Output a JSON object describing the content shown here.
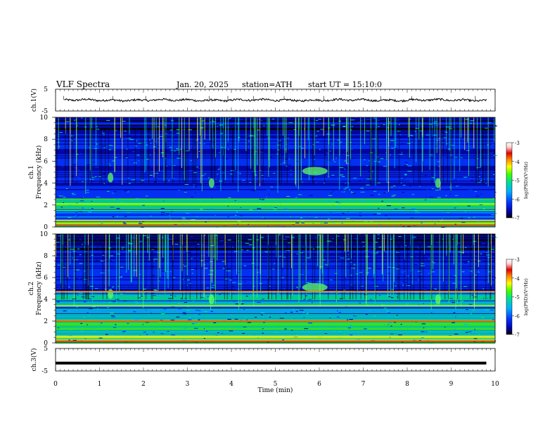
{
  "header": {
    "title": "VLF  Spectra",
    "date": "Jan. 20, 2025",
    "station": "station=ATH",
    "start": "start  UT  =   15:10:0"
  },
  "chart_data": [
    {
      "type": "line",
      "panel": "ch1-waveform",
      "ylabel": "ch.1(V)",
      "ylim": [
        -5,
        5
      ],
      "yticks": [
        "5",
        "-5"
      ],
      "xlim": [
        0,
        10
      ],
      "series": [
        {
          "values_description_level": 0,
          "trace_color": "#000000"
        }
      ]
    },
    {
      "type": "heatmap",
      "panel": "ch1-spectrogram",
      "ylabel": "ch.1\nFrequency  (kHz)",
      "ylim": [
        0,
        10
      ],
      "yticks": [
        "0",
        "2",
        "4",
        "6",
        "8",
        "10"
      ],
      "xlim": [
        0,
        10.0
      ],
      "colorbar": {
        "label": "log(PSD)(V²/Hz)",
        "range": [
          -7,
          -3
        ],
        "ticks": [
          "-3",
          "-4",
          "-5",
          "-6",
          "-7"
        ]
      }
    },
    {
      "type": "heatmap",
      "panel": "ch2-spectrogram",
      "ylabel": "ch.2\nFrequency  (kHz)",
      "ylim": [
        0,
        10
      ],
      "yticks": [
        "0",
        "2",
        "4",
        "6",
        "8",
        "10"
      ],
      "xlim": [
        0,
        10.0
      ],
      "colorbar": {
        "label": "log(PSD)(V²/Hz)",
        "range": [
          -7,
          -3
        ],
        "ticks": [
          "-3",
          "-4",
          "-5",
          "-6",
          "-7"
        ]
      }
    },
    {
      "type": "line",
      "panel": "ch3-waveform",
      "ylabel": "ch.3(V)",
      "ylim": [
        -5,
        5
      ],
      "yticks": [
        "5",
        "-5"
      ],
      "xlim": [
        0,
        10
      ],
      "series": [
        {
          "level": -1.5
        }
      ]
    }
  ],
  "xaxis": {
    "label": "Time  (min)",
    "ticks": [
      "0",
      "1",
      "2",
      "3",
      "4",
      "5",
      "6",
      "7",
      "8",
      "9",
      "10"
    ],
    "range": [
      0,
      10
    ]
  },
  "colors": {
    "cmap": [
      "#000000",
      "#0000a0",
      "#0030ff",
      "#00b0ff",
      "#00e090",
      "#40ff00",
      "#ffff00",
      "#ff8000",
      "#e00000",
      "#ffd0d0",
      "#ffffff"
    ]
  }
}
